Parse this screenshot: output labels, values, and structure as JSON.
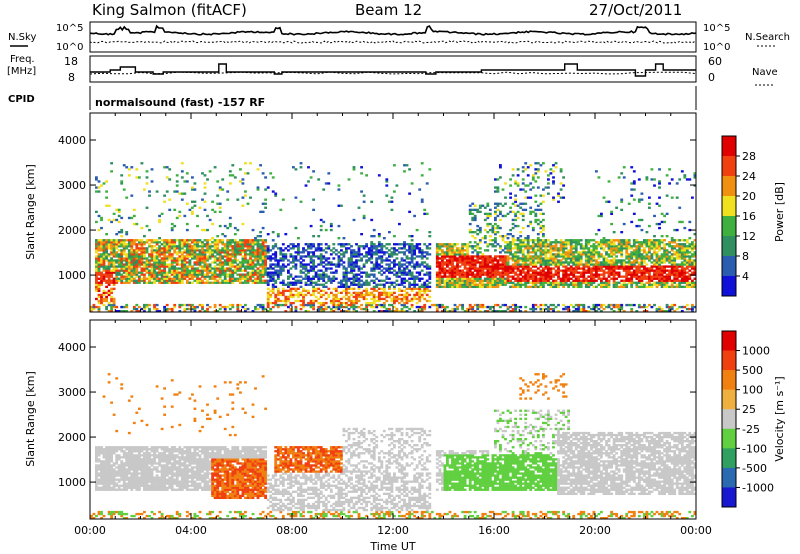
{
  "header": {
    "station": "King Salmon (fitACF)",
    "beam": "Beam 12",
    "date": "27/Oct/2011"
  },
  "panels": {
    "nsky_label": "N.Sky",
    "nsearch_label": "N.Search",
    "noise_ticks": [
      "10^5",
      "10^0"
    ],
    "freq_label_1": "Freq.",
    "freq_label_2": "[MHz]",
    "freq_ticks": [
      "18",
      "8"
    ],
    "nave_label": "Nave",
    "nave_ticks": [
      "60",
      "0"
    ],
    "cpid_label": "CPID",
    "cpid_text": "normalsound (fast) -157 RF"
  },
  "chart_data": [
    {
      "type": "heatmap",
      "name_id": "power",
      "ylabel": "Slant Range [km]",
      "xlabel": "",
      "ylim": [
        180,
        4600
      ],
      "xlim": [
        0,
        24
      ],
      "yticks": [
        "1000",
        "2000",
        "3000",
        "4000"
      ],
      "colorbar_label": "Power [dB]",
      "colorbar_ticks": [
        "4",
        "8",
        "12",
        "16",
        "20",
        "24",
        "28"
      ],
      "colorscale": [
        "#1010d8",
        "#2a5cb0",
        "#2f8f60",
        "#3fb040",
        "#f0e020",
        "#f09010",
        "#f04010",
        "#e00000"
      ]
    },
    {
      "type": "heatmap",
      "name_id": "velocity",
      "ylabel": "Slant Range [km]",
      "xlabel": "Time UT",
      "ylim": [
        180,
        4600
      ],
      "xlim": [
        0,
        24
      ],
      "yticks": [
        "1000",
        "2000",
        "3000",
        "4000"
      ],
      "xticks": [
        "00:00",
        "04:00",
        "08:00",
        "12:00",
        "16:00",
        "20:00",
        "00:00"
      ],
      "colorbar_label": "Velocity [m s⁻¹]",
      "colorbar_ticks": [
        "1000",
        "500",
        "100",
        "25",
        "-25",
        "-100",
        "-500",
        "-1000"
      ],
      "colorscale": [
        "#1818d0",
        "#2a6ab0",
        "#30a060",
        "#60d040",
        "#c8c8c8",
        "#f0b040",
        "#f08010",
        "#f04010",
        "#e00000"
      ]
    }
  ]
}
